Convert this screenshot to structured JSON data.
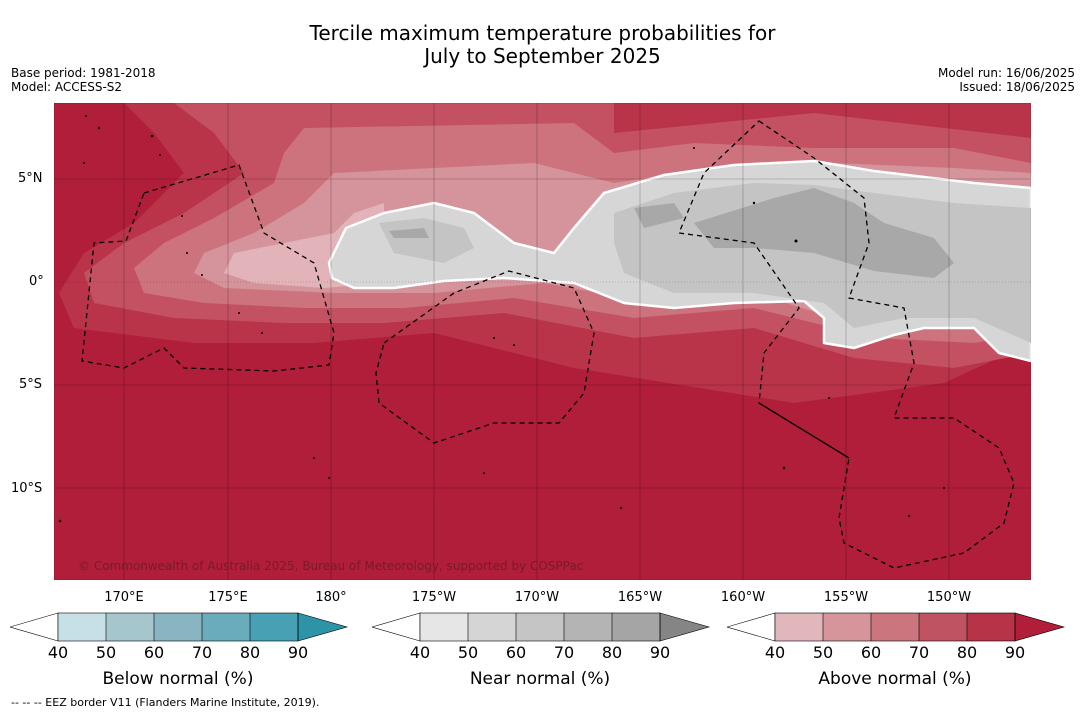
{
  "title": {
    "line1": "Tercile maximum temperature probabilities for",
    "line2": "July to September 2025"
  },
  "meta_left": {
    "base_period": "Base period: 1981-2018",
    "model": "Model: ACCESS-S2"
  },
  "meta_right": {
    "model_run": "Model run: 16/06/2025",
    "issued": "Issued: 18/06/2025"
  },
  "map": {
    "lat_labels": [
      "5°N",
      "0°",
      "5°S",
      "10°S"
    ],
    "lon_labels": [
      "170°E",
      "175°E",
      "180°",
      "175°W",
      "170°W",
      "165°W",
      "160°W",
      "155°W",
      "150°W"
    ],
    "credit": "© Commonwealth of Australia 2025, Bureau of Meteorology, supported by COSPPac",
    "background_category": "Above normal 90%",
    "regions": [
      {
        "category": "Near normal",
        "level": "60%",
        "color": "#c4c4c4",
        "area": "equatorial central and eastern Pacific"
      },
      {
        "category": "Near normal",
        "level": "70%",
        "color": "#a8a8a8",
        "area": "east of 165°W near the equator"
      },
      {
        "category": "Above normal",
        "level": "50-80%",
        "color": "#d4868f",
        "area": "band surrounding the near-normal region"
      }
    ]
  },
  "colorbars": [
    {
      "label": "Below normal (%)",
      "ticks": [
        "40",
        "50",
        "60",
        "70",
        "80",
        "90"
      ],
      "colors": [
        "#ffffff",
        "#c7e0e7",
        "#a6c6ce",
        "#89b5c2",
        "#6aacbb",
        "#47a0b3",
        "#2d94a8"
      ]
    },
    {
      "label": "Near normal (%)",
      "ticks": [
        "40",
        "50",
        "60",
        "70",
        "80",
        "90"
      ],
      "colors": [
        "#ffffff",
        "#e6e6e6",
        "#d5d5d5",
        "#c5c5c5",
        "#b4b4b4",
        "#a5a5a5",
        "#858585"
      ]
    },
    {
      "label": "Above normal (%)",
      "ticks": [
        "40",
        "50",
        "60",
        "70",
        "80",
        "90"
      ],
      "colors": [
        "#ffffff",
        "#e2b7bc",
        "#d5959b",
        "#cb767f",
        "#c05361",
        "#b73348",
        "#b01e3a"
      ]
    }
  ],
  "footer": "--  --  -- EEZ border V11 (Flanders Marine Institute, 2019)."
}
